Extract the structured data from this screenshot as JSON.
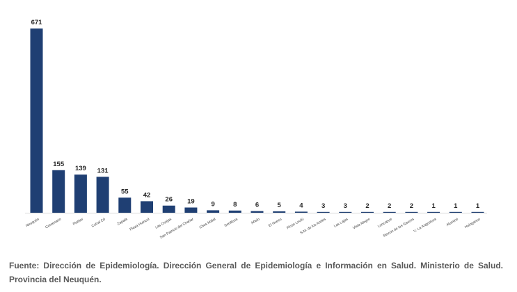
{
  "chart_data": {
    "type": "bar",
    "title": "",
    "xlabel": "",
    "ylabel": "",
    "ylim": [
      0,
      671
    ],
    "grid": false,
    "bar_color": "#1f3f73",
    "categories": [
      "Neuquén",
      "Centenario",
      "Plottier",
      "Cutral Có",
      "Zapala",
      "Plaza Huincul",
      "Las Ovejas",
      "San Patricio del Chañar",
      "Chos Malal",
      "Senillosa",
      "Añelo",
      "El Huecu",
      "Picún Leufú",
      "S.M. de los Andes",
      "Las Lajas",
      "Vista Alegre",
      "Loncopué",
      "Rincón de los Sauces",
      "V. La Angostura",
      "Aluminé",
      "Huinganco"
    ],
    "values": [
      671,
      155,
      139,
      131,
      55,
      42,
      26,
      19,
      9,
      8,
      6,
      5,
      4,
      3,
      3,
      2,
      2,
      2,
      1,
      1,
      1
    ]
  },
  "source_text": "Fuente: Dirección de Epidemiología. Dirección General de Epidemiología e Información en Salud. Ministerio de Salud. Provincia del Neuquén."
}
